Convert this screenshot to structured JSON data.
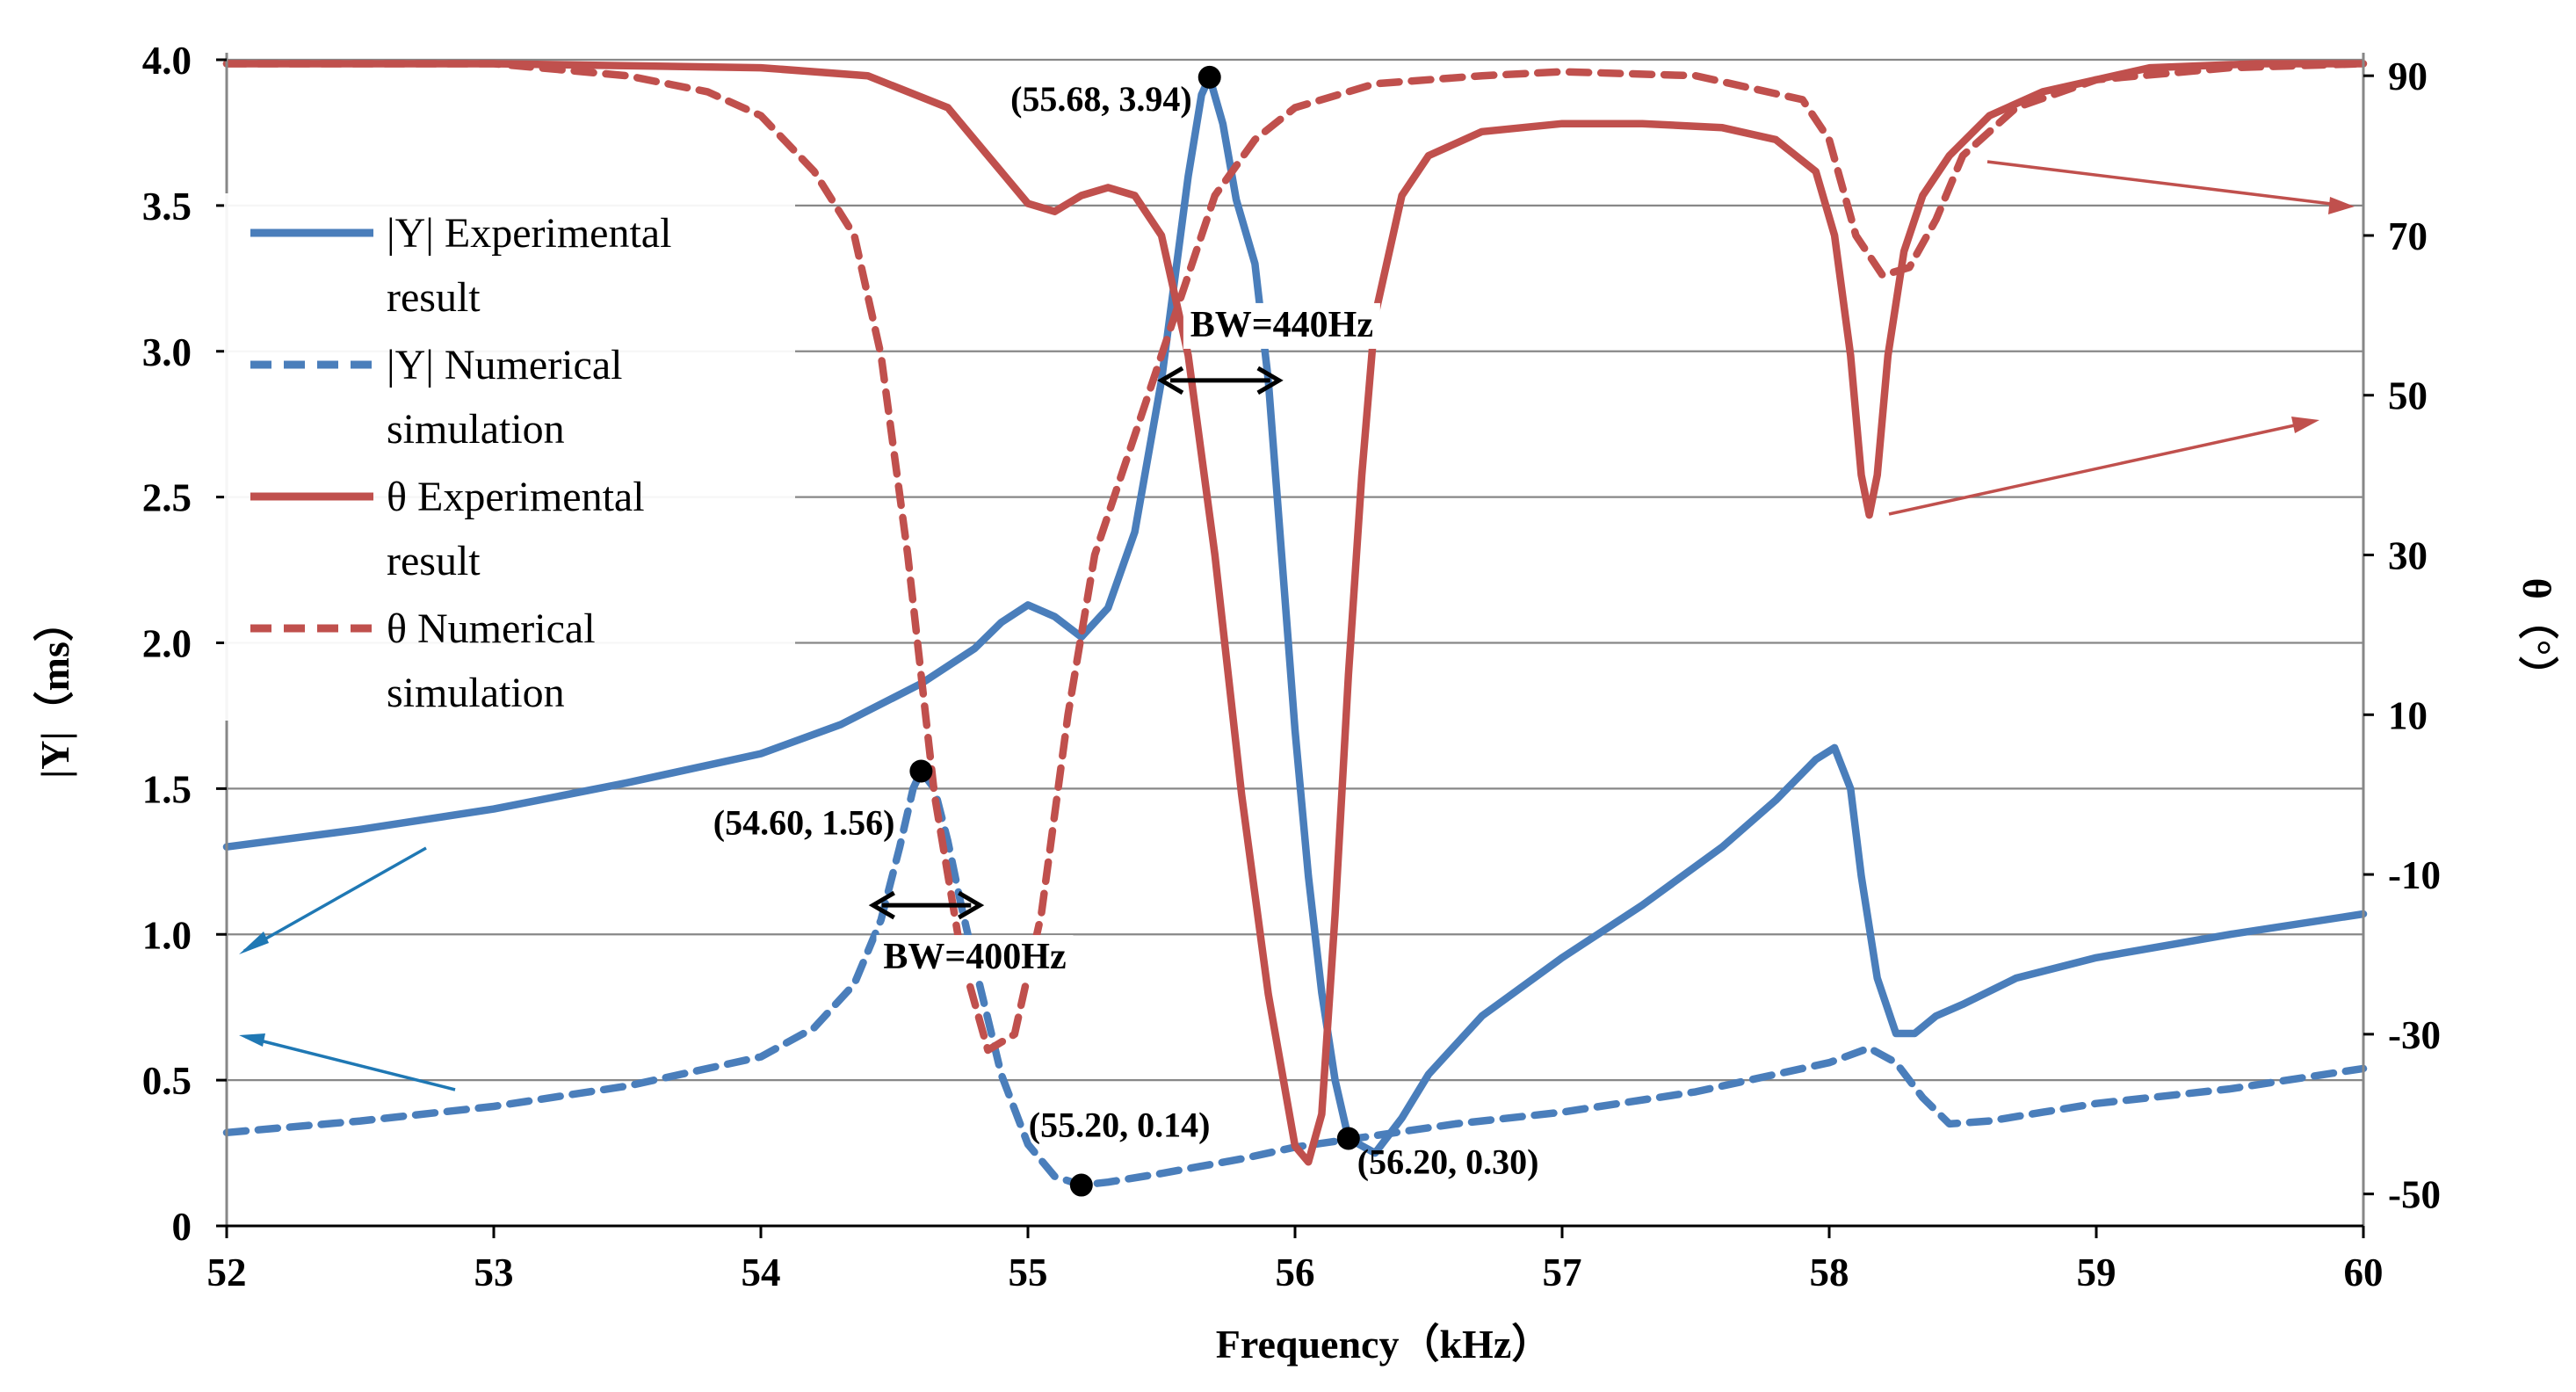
{
  "chart_data": {
    "type": "line",
    "title": "",
    "xlabel": "Frequency（kHz）",
    "ylabel": "|Y|（ms）",
    "y2label": "θ（°）",
    "xlim": [
      52,
      60
    ],
    "ylim": [
      0,
      4.0
    ],
    "y2lim": [
      -54,
      92
    ],
    "x_ticks": [
      "52",
      "53",
      "54",
      "55",
      "56",
      "57",
      "58",
      "59",
      "60"
    ],
    "y_ticks": [
      "0",
      "0.5",
      "1.0",
      "1.5",
      "2.0",
      "2.5",
      "3.0",
      "3.5",
      "4.0"
    ],
    "y2_ticks": [
      "90",
      "70",
      "50",
      "30",
      "10",
      "-10",
      "-30",
      "-50"
    ],
    "colors": {
      "blue": "#4a7ebb",
      "red": "#c0504d",
      "grid": "#878787",
      "arrow_blue": "#1f78b4",
      "arrow_red": "#c0504d"
    },
    "series": [
      {
        "name": "|Y| Experimental result",
        "legend_lines": [
          "|Y| Experimental",
          "result"
        ],
        "axis": "left",
        "color": "#4a7ebb",
        "dash": "solid",
        "x": [
          52.0,
          52.5,
          53.0,
          53.5,
          54.0,
          54.3,
          54.6,
          54.8,
          54.9,
          55.0,
          55.1,
          55.2,
          55.3,
          55.4,
          55.5,
          55.55,
          55.6,
          55.65,
          55.68,
          55.73,
          55.78,
          55.85,
          55.9,
          55.95,
          56.0,
          56.05,
          56.1,
          56.15,
          56.2,
          56.3,
          56.4,
          56.5,
          56.7,
          57.0,
          57.3,
          57.6,
          57.8,
          57.95,
          58.02,
          58.08,
          58.12,
          58.18,
          58.25,
          58.32,
          58.4,
          58.5,
          58.7,
          59.0,
          59.5,
          60.0
        ],
        "y": [
          1.3,
          1.36,
          1.43,
          1.52,
          1.62,
          1.72,
          1.86,
          1.98,
          2.07,
          2.13,
          2.09,
          2.02,
          2.12,
          2.38,
          2.9,
          3.25,
          3.6,
          3.88,
          3.94,
          3.78,
          3.52,
          3.3,
          2.9,
          2.3,
          1.7,
          1.2,
          0.8,
          0.5,
          0.3,
          0.25,
          0.37,
          0.52,
          0.72,
          0.92,
          1.1,
          1.3,
          1.46,
          1.6,
          1.64,
          1.5,
          1.2,
          0.85,
          0.66,
          0.66,
          0.72,
          0.76,
          0.85,
          0.92,
          1.0,
          1.07
        ]
      },
      {
        "name": "|Y| Numerical simulation",
        "legend_lines": [
          "|Y| Numerical",
          "simulation"
        ],
        "axis": "left",
        "color": "#4a7ebb",
        "dash": "dashed",
        "x": [
          52.0,
          52.5,
          53.0,
          53.5,
          54.0,
          54.2,
          54.35,
          54.45,
          54.52,
          54.57,
          54.6,
          54.65,
          54.7,
          54.75,
          54.8,
          54.9,
          55.0,
          55.1,
          55.2,
          55.3,
          55.5,
          55.8,
          56.0,
          56.3,
          56.6,
          57.0,
          57.5,
          58.0,
          58.15,
          58.25,
          58.35,
          58.45,
          58.6,
          58.8,
          59.0,
          59.5,
          60.0
        ],
        "y": [
          0.32,
          0.36,
          0.41,
          0.48,
          0.58,
          0.68,
          0.83,
          1.05,
          1.3,
          1.5,
          1.56,
          1.5,
          1.32,
          1.1,
          0.9,
          0.52,
          0.28,
          0.17,
          0.14,
          0.15,
          0.18,
          0.23,
          0.27,
          0.31,
          0.35,
          0.39,
          0.46,
          0.56,
          0.61,
          0.56,
          0.44,
          0.35,
          0.36,
          0.39,
          0.42,
          0.47,
          0.54
        ]
      },
      {
        "name": "θ Experimental result",
        "legend_lines": [
          "θ Experimental",
          "result"
        ],
        "axis": "right",
        "color": "#c0504d",
        "dash": "solid",
        "x": [
          52.0,
          53.0,
          54.0,
          54.4,
          54.7,
          54.85,
          55.0,
          55.1,
          55.2,
          55.3,
          55.4,
          55.5,
          55.6,
          55.7,
          55.8,
          55.9,
          56.0,
          56.05,
          56.1,
          56.15,
          56.2,
          56.25,
          56.3,
          56.4,
          56.5,
          56.7,
          57.0,
          57.3,
          57.6,
          57.8,
          57.95,
          58.02,
          58.08,
          58.12,
          58.15,
          58.18,
          58.22,
          58.28,
          58.35,
          58.45,
          58.6,
          58.8,
          59.2,
          59.6,
          60.0
        ],
        "y": [
          91.5,
          91.5,
          91.0,
          90.0,
          86.0,
          80.0,
          74.0,
          73.0,
          75.0,
          76.0,
          75.0,
          70.0,
          55.0,
          30.0,
          0.0,
          -25.0,
          -44.0,
          -46.0,
          -40.0,
          -15.0,
          15.0,
          40.0,
          60.0,
          75.0,
          80.0,
          83.0,
          84.0,
          84.0,
          83.5,
          82.0,
          78.0,
          70.0,
          55.0,
          40.0,
          35.0,
          40.0,
          55.0,
          68.0,
          75.0,
          80.0,
          85.0,
          88.0,
          91.0,
          91.5,
          91.5
        ]
      },
      {
        "name": "θ Numerical simulation",
        "legend_lines": [
          "θ  Numerical",
          "simulation"
        ],
        "axis": "right",
        "color": "#c0504d",
        "dash": "dashed",
        "x": [
          52.0,
          53.0,
          53.5,
          53.8,
          54.0,
          54.2,
          54.35,
          54.45,
          54.55,
          54.65,
          54.75,
          54.85,
          54.95,
          55.05,
          55.15,
          55.25,
          55.4,
          55.55,
          55.7,
          55.85,
          56.0,
          56.3,
          56.7,
          57.0,
          57.5,
          57.9,
          58.0,
          58.1,
          58.2,
          58.3,
          58.4,
          58.5,
          58.7,
          59.0,
          59.5,
          60.0
        ],
        "y": [
          91.5,
          91.5,
          90.0,
          88.0,
          85.0,
          78.0,
          70.0,
          55.0,
          30.0,
          0.0,
          -20.0,
          -32.0,
          -30.0,
          -15.0,
          10.0,
          30.0,
          45.0,
          60.0,
          75.0,
          82.0,
          86.0,
          89.0,
          90.0,
          90.5,
          90.0,
          87.0,
          82.0,
          70.0,
          65.0,
          66.0,
          72.0,
          80.0,
          86.0,
          89.5,
          91.0,
          91.5
        ]
      }
    ],
    "annotations": [
      {
        "text": "(55.68, 3.94)",
        "x": 55.68,
        "y": 3.94
      },
      {
        "text": "(54.60, 1.56)",
        "x": 54.6,
        "y": 1.56
      },
      {
        "text": "(55.20, 0.14)",
        "x": 55.2,
        "y": 0.14
      },
      {
        "text": "(56.20, 0.30)",
        "x": 56.2,
        "y": 0.3
      }
    ],
    "bandwidths": [
      {
        "text": "BW=440Hz",
        "x1": 55.5,
        "x2": 55.94,
        "y": 2.9
      },
      {
        "text": "BW=400Hz",
        "x1": 54.42,
        "x2": 54.82,
        "y": 1.1
      }
    ]
  }
}
